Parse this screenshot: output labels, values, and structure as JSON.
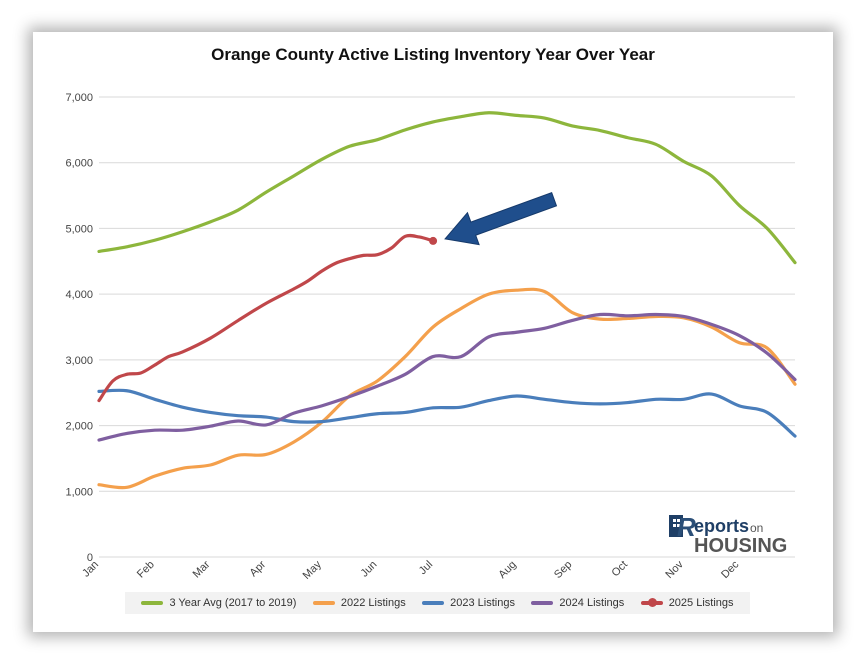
{
  "chart_data": {
    "type": "line",
    "title": "Orange County Active Listing Inventory Year Over Year",
    "xlabel": "",
    "ylabel": "",
    "ylim": [
      0,
      7000
    ],
    "yticks": [
      0,
      1000,
      2000,
      3000,
      4000,
      5000,
      6000,
      7000
    ],
    "ytick_labels": [
      "0",
      "1,000",
      "2,000",
      "3,000",
      "4,000",
      "5,000",
      "6,000",
      "7,000"
    ],
    "x_ticks": [
      {
        "label": "Jan",
        "week": 0
      },
      {
        "label": "Feb",
        "week": 4
      },
      {
        "label": "Mar",
        "week": 8
      },
      {
        "label": "Apr",
        "week": 12
      },
      {
        "label": "May",
        "week": 16
      },
      {
        "label": "Jun",
        "week": 20
      },
      {
        "label": "Jul",
        "week": 24
      },
      {
        "label": "Aug",
        "week": 30
      },
      {
        "label": "Sep",
        "week": 34
      },
      {
        "label": "Oct",
        "week": 38
      },
      {
        "label": "Nov",
        "week": 42
      },
      {
        "label": "Dec",
        "week": 46
      }
    ],
    "x_max_week": 50,
    "grid": true,
    "legend_position": "bottom",
    "series": [
      {
        "name": "3 Year Avg (2017 to 2019)",
        "color": "#8db63c",
        "points": [
          [
            0,
            4650
          ],
          [
            2,
            4720
          ],
          [
            4,
            4820
          ],
          [
            6,
            4950
          ],
          [
            8,
            5100
          ],
          [
            10,
            5280
          ],
          [
            12,
            5550
          ],
          [
            14,
            5800
          ],
          [
            16,
            6050
          ],
          [
            18,
            6250
          ],
          [
            20,
            6350
          ],
          [
            22,
            6500
          ],
          [
            24,
            6620
          ],
          [
            26,
            6700
          ],
          [
            28,
            6760
          ],
          [
            30,
            6720
          ],
          [
            32,
            6680
          ],
          [
            34,
            6560
          ],
          [
            36,
            6490
          ],
          [
            38,
            6380
          ],
          [
            40,
            6280
          ],
          [
            42,
            6020
          ],
          [
            44,
            5800
          ],
          [
            46,
            5350
          ],
          [
            48,
            5000
          ],
          [
            50,
            4480
          ]
        ]
      },
      {
        "name": "2022 Listings",
        "color": "#f4a04c",
        "points": [
          [
            0,
            1100
          ],
          [
            2,
            1060
          ],
          [
            4,
            1230
          ],
          [
            6,
            1350
          ],
          [
            8,
            1400
          ],
          [
            10,
            1550
          ],
          [
            12,
            1560
          ],
          [
            14,
            1750
          ],
          [
            16,
            2050
          ],
          [
            18,
            2450
          ],
          [
            20,
            2680
          ],
          [
            22,
            3050
          ],
          [
            24,
            3500
          ],
          [
            26,
            3780
          ],
          [
            28,
            4000
          ],
          [
            30,
            4060
          ],
          [
            32,
            4040
          ],
          [
            34,
            3720
          ],
          [
            36,
            3620
          ],
          [
            38,
            3630
          ],
          [
            40,
            3660
          ],
          [
            42,
            3640
          ],
          [
            44,
            3500
          ],
          [
            46,
            3260
          ],
          [
            48,
            3180
          ],
          [
            50,
            2630
          ]
        ]
      },
      {
        "name": "2023 Listings",
        "color": "#4a7ebb",
        "points": [
          [
            0,
            2520
          ],
          [
            2,
            2530
          ],
          [
            4,
            2400
          ],
          [
            6,
            2280
          ],
          [
            8,
            2200
          ],
          [
            10,
            2150
          ],
          [
            12,
            2130
          ],
          [
            14,
            2060
          ],
          [
            16,
            2060
          ],
          [
            18,
            2120
          ],
          [
            20,
            2180
          ],
          [
            22,
            2200
          ],
          [
            24,
            2270
          ],
          [
            26,
            2280
          ],
          [
            28,
            2380
          ],
          [
            30,
            2450
          ],
          [
            32,
            2400
          ],
          [
            34,
            2350
          ],
          [
            36,
            2330
          ],
          [
            38,
            2350
          ],
          [
            40,
            2400
          ],
          [
            42,
            2400
          ],
          [
            44,
            2480
          ],
          [
            46,
            2300
          ],
          [
            48,
            2200
          ],
          [
            50,
            1840
          ]
        ]
      },
      {
        "name": "2024 Listings",
        "color": "#7f5fa0",
        "points": [
          [
            0,
            1780
          ],
          [
            2,
            1880
          ],
          [
            4,
            1930
          ],
          [
            6,
            1930
          ],
          [
            8,
            1990
          ],
          [
            10,
            2070
          ],
          [
            12,
            2010
          ],
          [
            14,
            2190
          ],
          [
            16,
            2300
          ],
          [
            18,
            2440
          ],
          [
            20,
            2600
          ],
          [
            22,
            2780
          ],
          [
            24,
            3050
          ],
          [
            26,
            3050
          ],
          [
            28,
            3350
          ],
          [
            30,
            3420
          ],
          [
            32,
            3480
          ],
          [
            34,
            3600
          ],
          [
            36,
            3690
          ],
          [
            38,
            3670
          ],
          [
            40,
            3690
          ],
          [
            42,
            3660
          ],
          [
            44,
            3540
          ],
          [
            46,
            3370
          ],
          [
            48,
            3100
          ],
          [
            50,
            2700
          ]
        ]
      },
      {
        "name": "2025 Listings",
        "color": "#c0474a",
        "marker_end": true,
        "points": [
          [
            0,
            2380
          ],
          [
            1,
            2680
          ],
          [
            2,
            2780
          ],
          [
            3,
            2800
          ],
          [
            4,
            2920
          ],
          [
            5,
            3050
          ],
          [
            6,
            3120
          ],
          [
            8,
            3330
          ],
          [
            10,
            3600
          ],
          [
            12,
            3860
          ],
          [
            14,
            4080
          ],
          [
            15,
            4200
          ],
          [
            16,
            4350
          ],
          [
            17,
            4470
          ],
          [
            18,
            4540
          ],
          [
            19,
            4590
          ],
          [
            20,
            4600
          ],
          [
            21,
            4700
          ],
          [
            22,
            4880
          ],
          [
            23,
            4870
          ],
          [
            24,
            4810
          ]
        ]
      }
    ],
    "annotations": [
      {
        "type": "arrow",
        "color": "#1f4e8c",
        "points_to": "2025 Listings latest value",
        "week": 24,
        "value": 4810
      }
    ]
  },
  "logo": {
    "line1": "eports",
    "line1_suffix": "on",
    "line2": "HOUSING",
    "initial": "R"
  }
}
